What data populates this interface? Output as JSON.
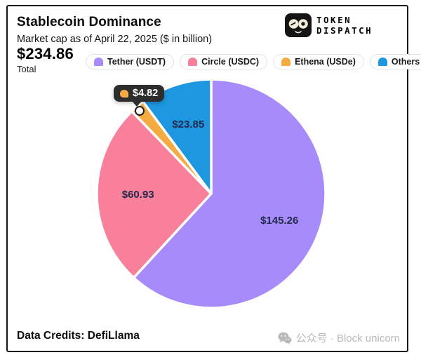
{
  "header": {
    "title": "Stablecoin Dominance",
    "subtitle": "Market cap as of April 22, 2025 ($ in billion)",
    "total_value": "$234.86",
    "total_label": "Total"
  },
  "brand": {
    "name_line1": "TOKEN",
    "name_line2": "DISPATCH"
  },
  "legend": {
    "items": [
      {
        "label": "Tether (USDT)",
        "color": "#a78bfa"
      },
      {
        "label": "Circle (USDC)",
        "color": "#f9809a"
      },
      {
        "label": "Ethena (USDe)",
        "color": "#f5ab42"
      },
      {
        "label": "Others",
        "color": "#1e96e0"
      }
    ]
  },
  "chart_data": {
    "type": "pie",
    "title": "Stablecoin Dominance",
    "subtitle": "Market cap as of April 22, 2025 ($ in billion)",
    "unit": "USD billion",
    "total": 234.86,
    "start_angle_deg": 0,
    "direction": "clockwise",
    "slice_gap_color": "#ffffff",
    "label_color": "#1f2a4d",
    "slices": [
      {
        "name": "Tether (USDT)",
        "value": 145.26,
        "label": "$145.26",
        "color": "#a78bfa",
        "label_style": "inside"
      },
      {
        "name": "Circle (USDC)",
        "value": 60.93,
        "label": "$60.93",
        "color": "#f9809a",
        "label_style": "inside"
      },
      {
        "name": "Ethena (USDe)",
        "value": 4.82,
        "label": "$4.82",
        "color": "#f5ab42",
        "label_style": "tooltip"
      },
      {
        "name": "Others",
        "value": 23.85,
        "label": "$23.85",
        "color": "#1e96e0",
        "label_style": "inside"
      }
    ]
  },
  "tooltip": {
    "value": "$4.82"
  },
  "footer": {
    "credits": "Data Credits: DefiLlama",
    "watermark": "公众号 · Block unicorn"
  }
}
